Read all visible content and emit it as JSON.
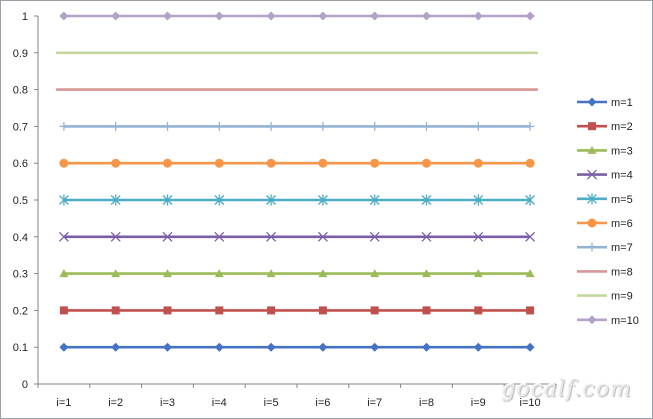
{
  "chart_data": {
    "type": "line",
    "categories": [
      "i=1",
      "i=2",
      "i=3",
      "i=4",
      "i=5",
      "i=6",
      "i=7",
      "i=8",
      "i=9",
      "i=10"
    ],
    "ylim": [
      0,
      1
    ],
    "yticks": [
      "0",
      "0.1",
      "0.2",
      "0.3",
      "0.4",
      "0.5",
      "0.6",
      "0.7",
      "0.8",
      "0.9",
      "1"
    ],
    "grid": "none",
    "legend_position": "right",
    "series": [
      {
        "name": "m=1",
        "color": "#4472c4",
        "marker": "diamond",
        "values": [
          0.1,
          0.1,
          0.1,
          0.1,
          0.1,
          0.1,
          0.1,
          0.1,
          0.1,
          0.1
        ]
      },
      {
        "name": "m=2",
        "color": "#c0504d",
        "marker": "square",
        "values": [
          0.2,
          0.2,
          0.2,
          0.2,
          0.2,
          0.2,
          0.2,
          0.2,
          0.2,
          0.2
        ]
      },
      {
        "name": "m=3",
        "color": "#9bbb59",
        "marker": "triangle",
        "values": [
          0.3,
          0.3,
          0.3,
          0.3,
          0.3,
          0.3,
          0.3,
          0.3,
          0.3,
          0.3
        ]
      },
      {
        "name": "m=4",
        "color": "#7b5ea7",
        "marker": "x",
        "values": [
          0.4,
          0.4,
          0.4,
          0.4,
          0.4,
          0.4,
          0.4,
          0.4,
          0.4,
          0.4
        ]
      },
      {
        "name": "m=5",
        "color": "#4bacc6",
        "marker": "star",
        "values": [
          0.5,
          0.5,
          0.5,
          0.5,
          0.5,
          0.5,
          0.5,
          0.5,
          0.5,
          0.5
        ]
      },
      {
        "name": "m=6",
        "color": "#f79646",
        "marker": "circle",
        "values": [
          0.6,
          0.6,
          0.6,
          0.6,
          0.6,
          0.6,
          0.6,
          0.6,
          0.6,
          0.6
        ]
      },
      {
        "name": "m=7",
        "color": "#95b3d7",
        "marker": "plus",
        "values": [
          0.7,
          0.7,
          0.7,
          0.7,
          0.7,
          0.7,
          0.7,
          0.7,
          0.7,
          0.7
        ]
      },
      {
        "name": "m=8",
        "color": "#da9694",
        "marker": "none",
        "values": [
          0.8,
          0.8,
          0.8,
          0.8,
          0.8,
          0.8,
          0.8,
          0.8,
          0.8,
          0.8
        ]
      },
      {
        "name": "m=9",
        "color": "#c3d69b",
        "marker": "none",
        "values": [
          0.9,
          0.9,
          0.9,
          0.9,
          0.9,
          0.9,
          0.9,
          0.9,
          0.9,
          0.9
        ]
      },
      {
        "name": "m=10",
        "color": "#b3a2c7",
        "marker": "diamond",
        "values": [
          1,
          1,
          1,
          1,
          1,
          1,
          1,
          1,
          1,
          1
        ]
      }
    ]
  },
  "watermark": "gocalf.com"
}
